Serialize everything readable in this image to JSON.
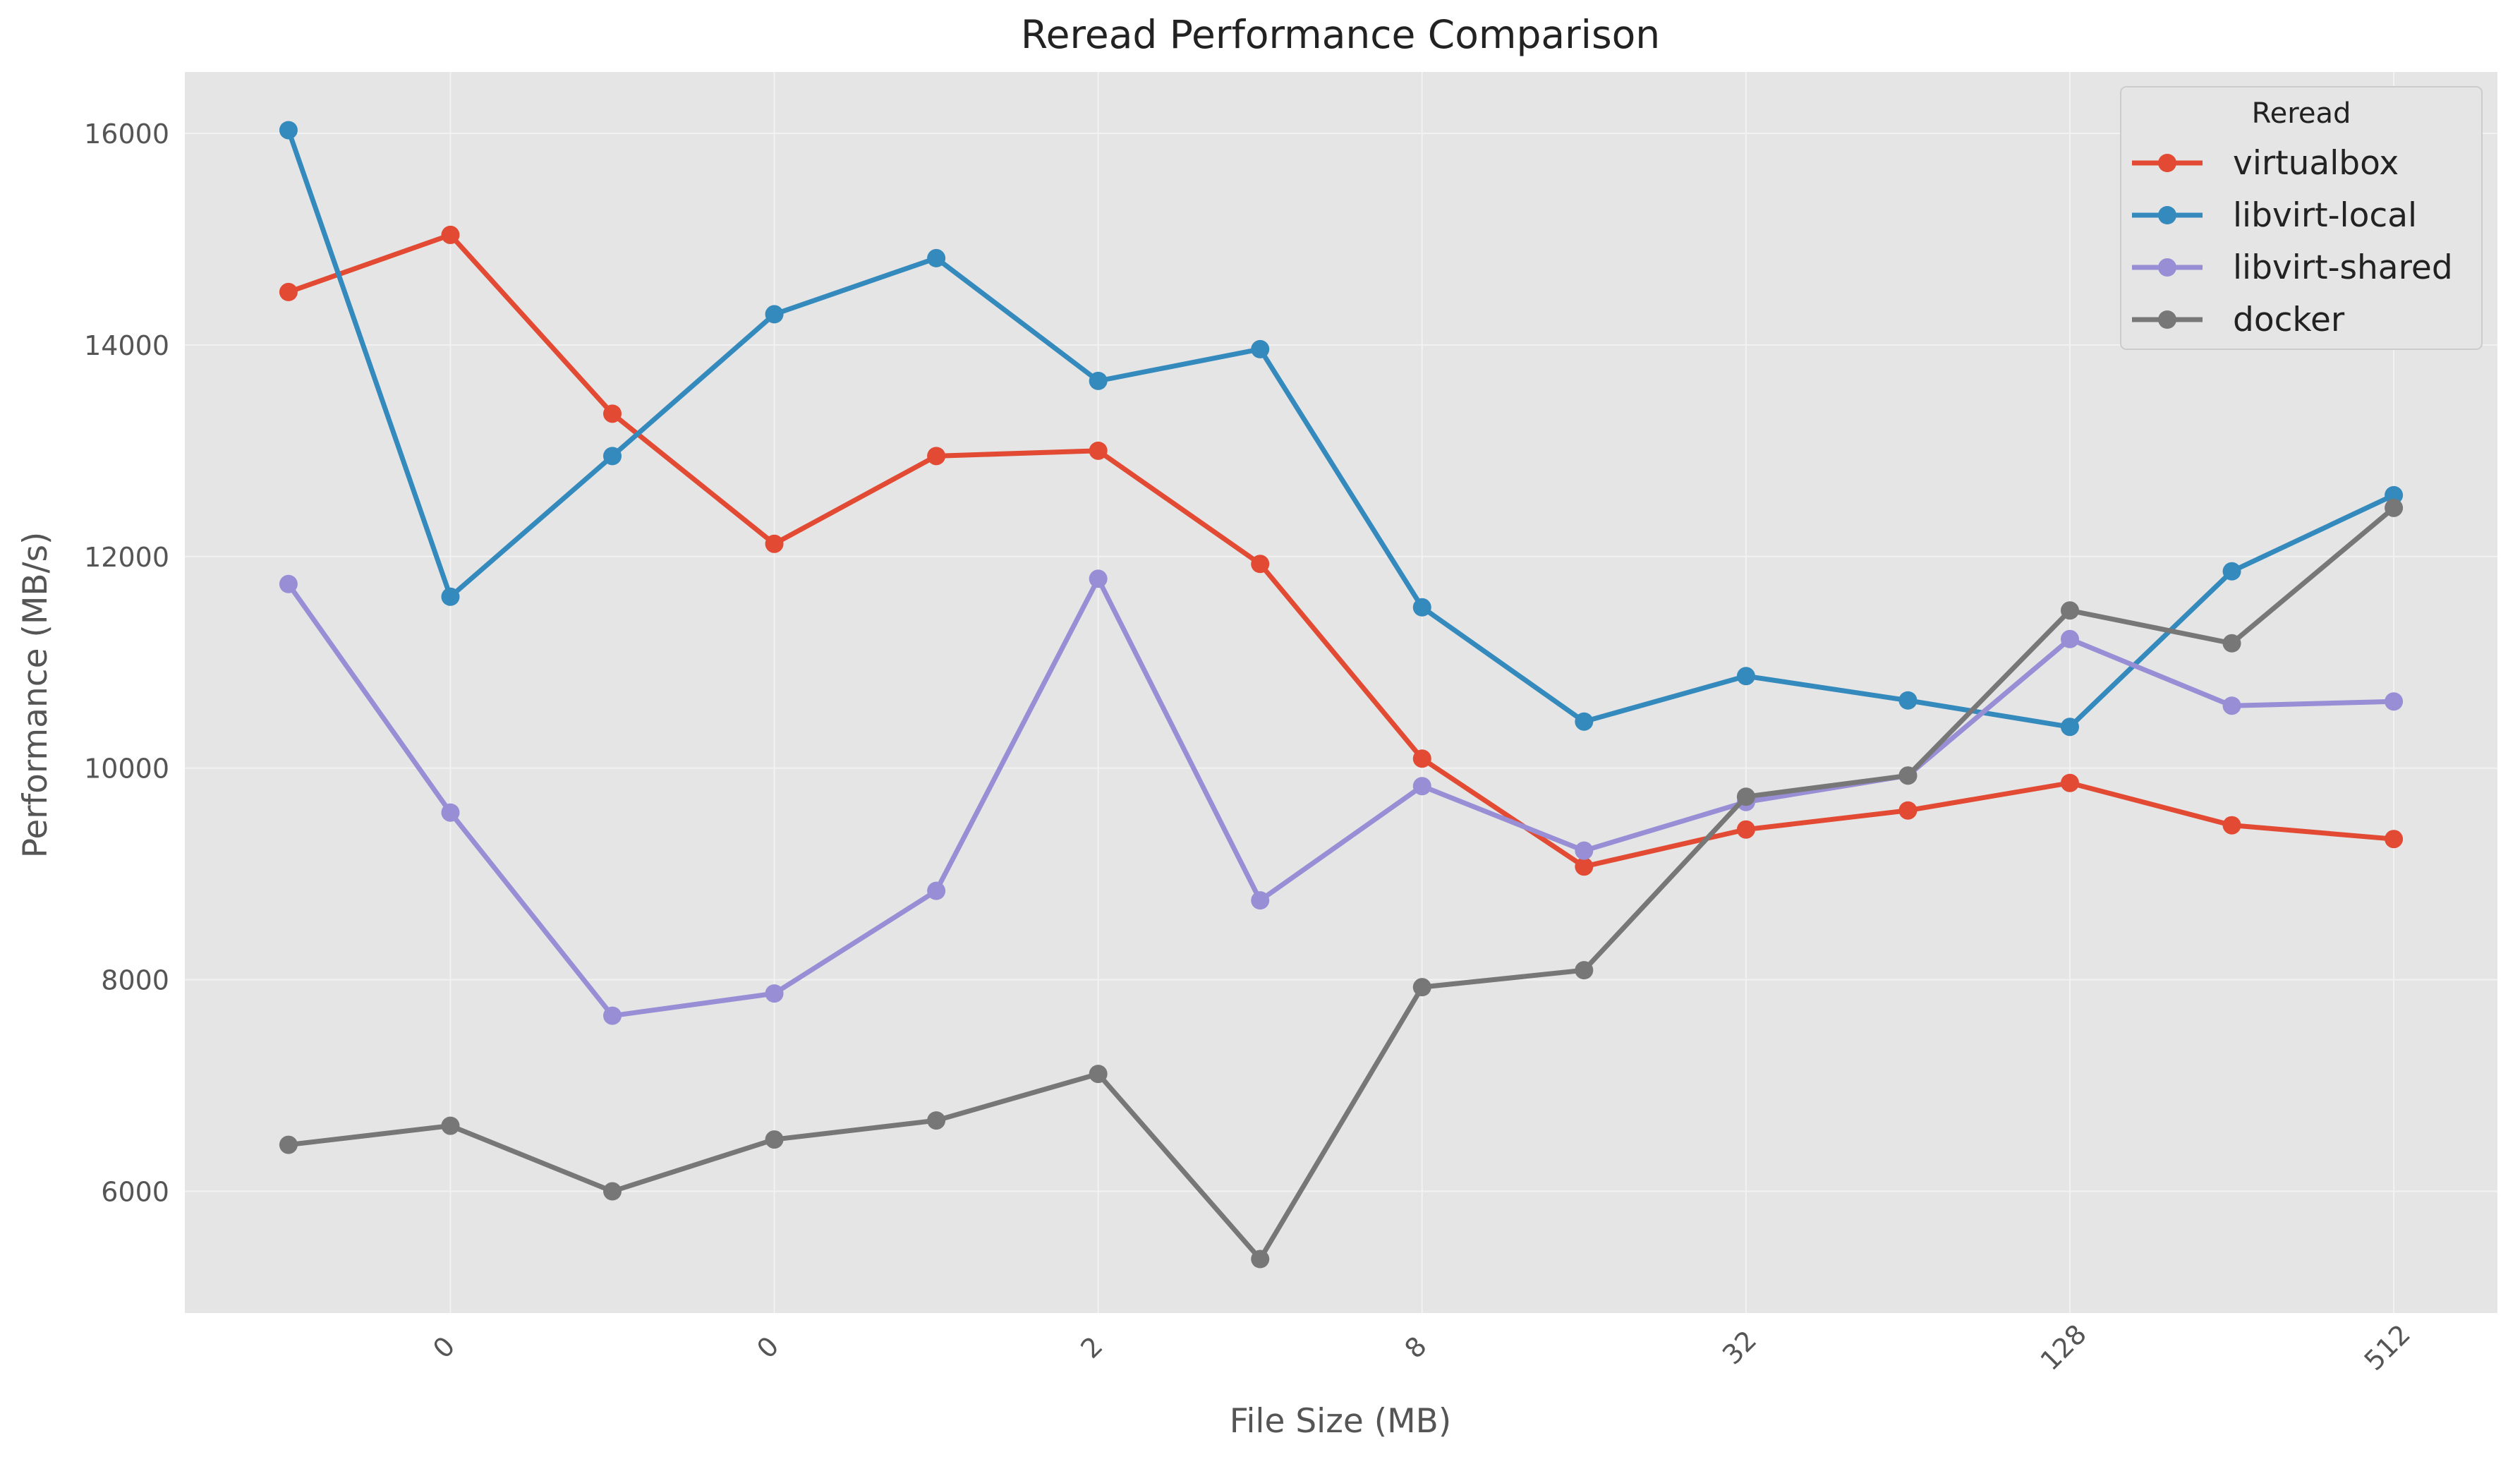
{
  "chart_data": {
    "type": "line",
    "title": "Reread Performance Comparison",
    "xlabel": "File Size (MB)",
    "ylabel": "Performance (MB/s)",
    "x": [
      0,
      1,
      2,
      3,
      4,
      5,
      6,
      7,
      8,
      9,
      10,
      11,
      12,
      13
    ],
    "xlim": [
      -0.64,
      13.64
    ],
    "xticks": [
      {
        "pos": 1,
        "label": "0"
      },
      {
        "pos": 3,
        "label": "0"
      },
      {
        "pos": 5,
        "label": "2"
      },
      {
        "pos": 7,
        "label": "8"
      },
      {
        "pos": 9,
        "label": "32"
      },
      {
        "pos": 11,
        "label": "128"
      },
      {
        "pos": 13,
        "label": "512"
      }
    ],
    "ylim": [
      4850,
      16580
    ],
    "yticks": [
      6000,
      8000,
      10000,
      12000,
      14000,
      16000
    ],
    "grid": true,
    "legend": {
      "title": "Reread",
      "position": "top-right"
    },
    "series": [
      {
        "name": "virtualbox",
        "color": "#E24A33",
        "values": [
          14500,
          15040,
          13350,
          12120,
          12950,
          13000,
          11930,
          10090,
          9070,
          9420,
          9600,
          9860,
          9460,
          9330
        ]
      },
      {
        "name": "libvirt-local",
        "color": "#348ABD",
        "values": [
          16030,
          11620,
          12950,
          14290,
          14820,
          13660,
          13960,
          11520,
          10440,
          10870,
          10640,
          10390,
          11860,
          12580
        ]
      },
      {
        "name": "libvirt-shared",
        "color": "#988ED5",
        "values": [
          11740,
          9580,
          7660,
          7870,
          8840,
          11790,
          8750,
          9830,
          9220,
          9680,
          9930,
          11220,
          10590,
          10630
        ]
      },
      {
        "name": "docker",
        "color": "#777777",
        "values": [
          6440,
          6620,
          6000,
          6490,
          6670,
          7110,
          5360,
          7930,
          8090,
          9730,
          9930,
          11490,
          11180,
          12460
        ]
      }
    ]
  }
}
